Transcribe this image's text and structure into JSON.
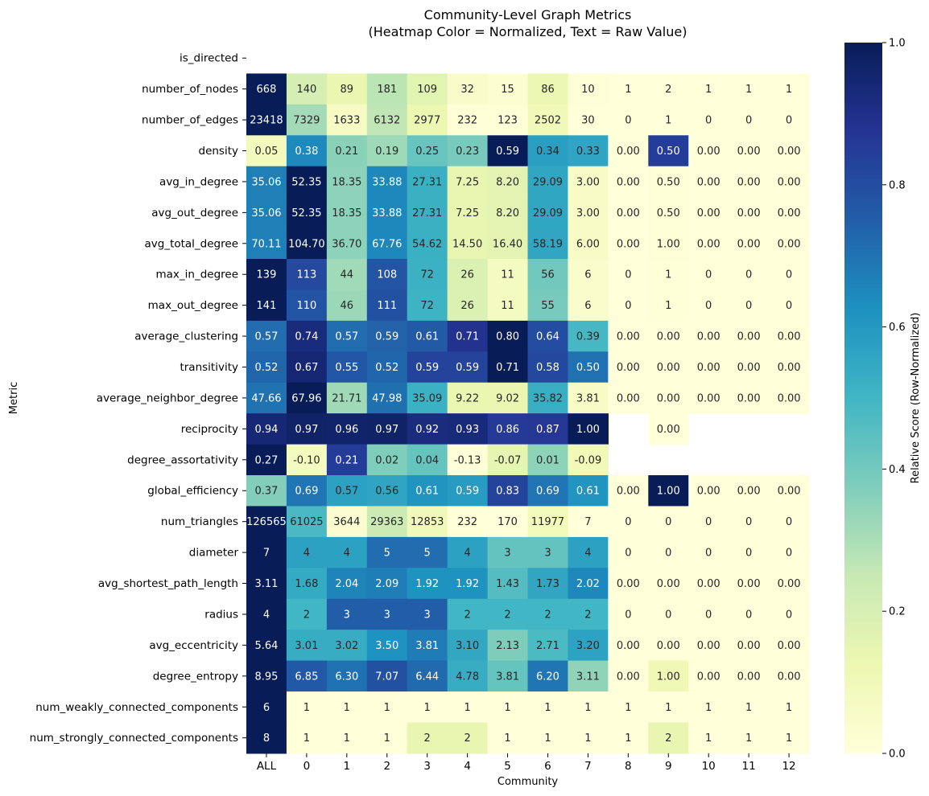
{
  "chart_data": {
    "type": "heatmap",
    "title": "Community-Level Graph Metrics",
    "subtitle": "(Heatmap Color = Normalized, Text = Raw Value)",
    "xlabel": "Community",
    "ylabel": "Metric",
    "colorbar_label": "Relative Score (Row-Normalized)",
    "colorbar_ticks": [
      "0.0",
      "0.2",
      "0.4",
      "0.6",
      "0.8",
      "1.0"
    ],
    "colormap": "YlGnBu",
    "columns": [
      "ALL",
      "0",
      "1",
      "2",
      "3",
      "4",
      "5",
      "6",
      "7",
      "8",
      "9",
      "10",
      "11",
      "12"
    ],
    "rows": [
      {
        "metric": "is_directed",
        "values": [
          null,
          null,
          null,
          null,
          null,
          null,
          null,
          null,
          null,
          null,
          null,
          null,
          null,
          null
        ],
        "labels": [
          "",
          "",
          "",
          "",
          "",
          "",
          "",
          "",
          "",
          "",
          "",
          "",
          "",
          ""
        ]
      },
      {
        "metric": "number_of_nodes",
        "values": [
          668,
          140,
          89,
          181,
          109,
          32,
          15,
          86,
          10,
          1,
          2,
          1,
          1,
          1
        ],
        "labels": [
          "668",
          "140",
          "89",
          "181",
          "109",
          "32",
          "15",
          "86",
          "10",
          "1",
          "2",
          "1",
          "1",
          "1"
        ]
      },
      {
        "metric": "number_of_edges",
        "values": [
          23418,
          7329,
          1633,
          6132,
          2977,
          232,
          123,
          2502,
          30,
          0,
          1,
          0,
          0,
          0
        ],
        "labels": [
          "23418",
          "7329",
          "1633",
          "6132",
          "2977",
          "232",
          "123",
          "2502",
          "30",
          "0",
          "1",
          "0",
          "0",
          "0"
        ]
      },
      {
        "metric": "density",
        "values": [
          0.05,
          0.38,
          0.21,
          0.19,
          0.25,
          0.23,
          0.59,
          0.34,
          0.33,
          0.0,
          0.5,
          0.0,
          0.0,
          0.0
        ],
        "labels": [
          "0.05",
          "0.38",
          "0.21",
          "0.19",
          "0.25",
          "0.23",
          "0.59",
          "0.34",
          "0.33",
          "0.00",
          "0.50",
          "0.00",
          "0.00",
          "0.00"
        ]
      },
      {
        "metric": "avg_in_degree",
        "values": [
          35.06,
          52.35,
          18.35,
          33.88,
          27.31,
          7.25,
          8.2,
          29.09,
          3.0,
          0.0,
          0.5,
          0.0,
          0.0,
          0.0
        ],
        "labels": [
          "35.06",
          "52.35",
          "18.35",
          "33.88",
          "27.31",
          "7.25",
          "8.20",
          "29.09",
          "3.00",
          "0.00",
          "0.50",
          "0.00",
          "0.00",
          "0.00"
        ]
      },
      {
        "metric": "avg_out_degree",
        "values": [
          35.06,
          52.35,
          18.35,
          33.88,
          27.31,
          7.25,
          8.2,
          29.09,
          3.0,
          0.0,
          0.5,
          0.0,
          0.0,
          0.0
        ],
        "labels": [
          "35.06",
          "52.35",
          "18.35",
          "33.88",
          "27.31",
          "7.25",
          "8.20",
          "29.09",
          "3.00",
          "0.00",
          "0.50",
          "0.00",
          "0.00",
          "0.00"
        ]
      },
      {
        "metric": "avg_total_degree",
        "values": [
          70.11,
          104.7,
          36.7,
          67.76,
          54.62,
          14.5,
          16.4,
          58.19,
          6.0,
          0.0,
          1.0,
          0.0,
          0.0,
          0.0
        ],
        "labels": [
          "70.11",
          "104.70",
          "36.70",
          "67.76",
          "54.62",
          "14.50",
          "16.40",
          "58.19",
          "6.00",
          "0.00",
          "1.00",
          "0.00",
          "0.00",
          "0.00"
        ]
      },
      {
        "metric": "max_in_degree",
        "values": [
          139,
          113,
          44,
          108,
          72,
          26,
          11,
          56,
          6,
          0,
          1,
          0,
          0,
          0
        ],
        "labels": [
          "139",
          "113",
          "44",
          "108",
          "72",
          "26",
          "11",
          "56",
          "6",
          "0",
          "1",
          "0",
          "0",
          "0"
        ]
      },
      {
        "metric": "max_out_degree",
        "values": [
          141,
          110,
          46,
          111,
          72,
          26,
          11,
          55,
          6,
          0,
          1,
          0,
          0,
          0
        ],
        "labels": [
          "141",
          "110",
          "46",
          "111",
          "72",
          "26",
          "11",
          "55",
          "6",
          "0",
          "1",
          "0",
          "0",
          "0"
        ]
      },
      {
        "metric": "average_clustering",
        "values": [
          0.57,
          0.74,
          0.57,
          0.59,
          0.61,
          0.71,
          0.8,
          0.64,
          0.39,
          0.0,
          0.0,
          0.0,
          0.0,
          0.0
        ],
        "labels": [
          "0.57",
          "0.74",
          "0.57",
          "0.59",
          "0.61",
          "0.71",
          "0.80",
          "0.64",
          "0.39",
          "0.00",
          "0.00",
          "0.00",
          "0.00",
          "0.00"
        ]
      },
      {
        "metric": "transitivity",
        "values": [
          0.52,
          0.67,
          0.55,
          0.52,
          0.59,
          0.59,
          0.71,
          0.58,
          0.5,
          0.0,
          0.0,
          0.0,
          0.0,
          0.0
        ],
        "labels": [
          "0.52",
          "0.67",
          "0.55",
          "0.52",
          "0.59",
          "0.59",
          "0.71",
          "0.58",
          "0.50",
          "0.00",
          "0.00",
          "0.00",
          "0.00",
          "0.00"
        ]
      },
      {
        "metric": "average_neighbor_degree",
        "values": [
          47.66,
          67.96,
          21.71,
          47.98,
          35.09,
          9.22,
          9.02,
          35.82,
          3.81,
          0.0,
          0.0,
          0.0,
          0.0,
          0.0
        ],
        "labels": [
          "47.66",
          "67.96",
          "21.71",
          "47.98",
          "35.09",
          "9.22",
          "9.02",
          "35.82",
          "3.81",
          "0.00",
          "0.00",
          "0.00",
          "0.00",
          "0.00"
        ]
      },
      {
        "metric": "reciprocity",
        "values": [
          0.94,
          0.97,
          0.96,
          0.97,
          0.92,
          0.93,
          0.86,
          0.87,
          1.0,
          null,
          0.0,
          null,
          null,
          null
        ],
        "labels": [
          "0.94",
          "0.97",
          "0.96",
          "0.97",
          "0.92",
          "0.93",
          "0.86",
          "0.87",
          "1.00",
          "",
          "0.00",
          "",
          "",
          ""
        ]
      },
      {
        "metric": "degree_assortativity",
        "values": [
          0.27,
          -0.1,
          0.21,
          0.02,
          0.04,
          -0.13,
          -0.07,
          0.01,
          -0.09,
          null,
          null,
          null,
          null,
          null
        ],
        "labels": [
          "0.27",
          "-0.10",
          "0.21",
          "0.02",
          "0.04",
          "-0.13",
          "-0.07",
          "0.01",
          "-0.09",
          "",
          "",
          "",
          "",
          ""
        ]
      },
      {
        "metric": "global_efficiency",
        "values": [
          0.37,
          0.69,
          0.57,
          0.56,
          0.61,
          0.59,
          0.83,
          0.69,
          0.61,
          0.0,
          1.0,
          0.0,
          0.0,
          0.0
        ],
        "labels": [
          "0.37",
          "0.69",
          "0.57",
          "0.56",
          "0.61",
          "0.59",
          "0.83",
          "0.69",
          "0.61",
          "0.00",
          "1.00",
          "0.00",
          "0.00",
          "0.00"
        ]
      },
      {
        "metric": "num_triangles",
        "values": [
          126565,
          61025,
          3644,
          29363,
          12853,
          232,
          170,
          11977,
          7,
          0,
          0,
          0,
          0,
          0
        ],
        "labels": [
          "126565",
          "61025",
          "3644",
          "29363",
          "12853",
          "232",
          "170",
          "11977",
          "7",
          "0",
          "0",
          "0",
          "0",
          "0"
        ]
      },
      {
        "metric": "diameter",
        "values": [
          7,
          4,
          4,
          5,
          5,
          4,
          3,
          3,
          4,
          0,
          0,
          0,
          0,
          0
        ],
        "labels": [
          "7",
          "4",
          "4",
          "5",
          "5",
          "4",
          "3",
          "3",
          "4",
          "0",
          "0",
          "0",
          "0",
          "0"
        ]
      },
      {
        "metric": "avg_shortest_path_length",
        "values": [
          3.11,
          1.68,
          2.04,
          2.09,
          1.92,
          1.92,
          1.43,
          1.73,
          2.02,
          0.0,
          0.0,
          0.0,
          0.0,
          0.0
        ],
        "labels": [
          "3.11",
          "1.68",
          "2.04",
          "2.09",
          "1.92",
          "1.92",
          "1.43",
          "1.73",
          "2.02",
          "0.00",
          "0.00",
          "0.00",
          "0.00",
          "0.00"
        ]
      },
      {
        "metric": "radius",
        "values": [
          4,
          2,
          3,
          3,
          3,
          2,
          2,
          2,
          2,
          0,
          0,
          0,
          0,
          0
        ],
        "labels": [
          "4",
          "2",
          "3",
          "3",
          "3",
          "2",
          "2",
          "2",
          "2",
          "0",
          "0",
          "0",
          "0",
          "0"
        ]
      },
      {
        "metric": "avg_eccentricity",
        "values": [
          5.64,
          3.01,
          3.02,
          3.5,
          3.81,
          3.1,
          2.13,
          2.71,
          3.2,
          0.0,
          0.0,
          0.0,
          0.0,
          0.0
        ],
        "labels": [
          "5.64",
          "3.01",
          "3.02",
          "3.50",
          "3.81",
          "3.10",
          "2.13",
          "2.71",
          "3.20",
          "0.00",
          "0.00",
          "0.00",
          "0.00",
          "0.00"
        ]
      },
      {
        "metric": "degree_entropy",
        "values": [
          8.95,
          6.85,
          6.3,
          7.07,
          6.44,
          4.78,
          3.81,
          6.2,
          3.11,
          0.0,
          1.0,
          0.0,
          0.0,
          0.0
        ],
        "labels": [
          "8.95",
          "6.85",
          "6.30",
          "7.07",
          "6.44",
          "4.78",
          "3.81",
          "6.20",
          "3.11",
          "0.00",
          "1.00",
          "0.00",
          "0.00",
          "0.00"
        ]
      },
      {
        "metric": "num_weakly_connected_components",
        "values": [
          6,
          1,
          1,
          1,
          1,
          1,
          1,
          1,
          1,
          1,
          1,
          1,
          1,
          1
        ],
        "labels": [
          "6",
          "1",
          "1",
          "1",
          "1",
          "1",
          "1",
          "1",
          "1",
          "1",
          "1",
          "1",
          "1",
          "1"
        ]
      },
      {
        "metric": "num_strongly_connected_components",
        "values": [
          8,
          1,
          1,
          1,
          2,
          2,
          1,
          1,
          1,
          1,
          2,
          1,
          1,
          1
        ],
        "labels": [
          "8",
          "1",
          "1",
          "1",
          "2",
          "2",
          "1",
          "1",
          "1",
          "1",
          "2",
          "1",
          "1",
          "1"
        ]
      }
    ]
  }
}
